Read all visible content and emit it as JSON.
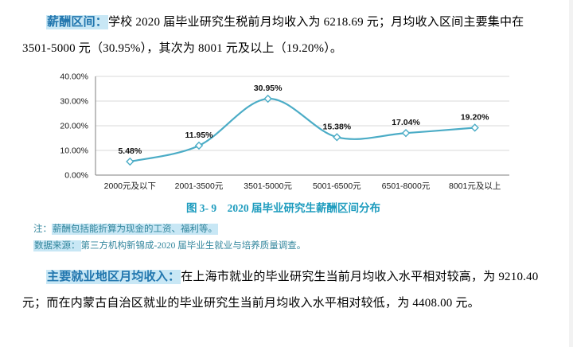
{
  "page": {
    "para1": {
      "label": "薪酬区间：",
      "text": "学校 2020 届毕业研究生税前月均收入为 6218.69 元；月均收入区间主要集中在 3501-5000 元（30.95%），其次为 8001 元及以上（19.20%）。"
    },
    "chart_caption": "图 3- 9　2020 届毕业研究生薪酬区间分布",
    "note1": {
      "prefix": "注：",
      "body": "薪酬包括能折算为现金的工资、福利等。"
    },
    "note2": {
      "prefix": "数据来源：",
      "body": "第三方机构新锦成-2020 届毕业生就业与培养质量调查。"
    },
    "para2": {
      "label": "主要就业地区月均收入：",
      "text": "在上海市就业的毕业研究生当前月均收入水平相对较高，为 9210.40 元；而在内蒙古自治区就业的毕业研究生当前月均收入水平相对较低，为 4408.00 元。"
    }
  },
  "chart_data": {
    "type": "line",
    "title": "2020 届毕业研究生薪酬区间分布",
    "categories": [
      "2000元及以下",
      "2001-3500元",
      "3501-5000元",
      "5001-6500元",
      "6501-8000元",
      "8001元及以上"
    ],
    "values": [
      5.48,
      11.95,
      30.95,
      15.38,
      17.04,
      19.2
    ],
    "data_labels": [
      "5.48%",
      "11.95%",
      "30.95%",
      "15.38%",
      "17.04%",
      "19.20%"
    ],
    "xlabel": "",
    "ylabel": "",
    "ylim": [
      0,
      40
    ],
    "ytick_step": 10,
    "ytick_labels": [
      "0.00%",
      "10.00%",
      "20.00%",
      "30.00%",
      "40.00%"
    ],
    "grid": "horizontal",
    "legend": "none",
    "smooth": true,
    "marker": "diamond",
    "line_color": "#4bacc6"
  },
  "colors": {
    "lead_label": "#2176ae",
    "highlight": "#c8e7f5",
    "caption": "#1e9cbe",
    "notes": "#31859c",
    "line": "#4bacc6"
  }
}
